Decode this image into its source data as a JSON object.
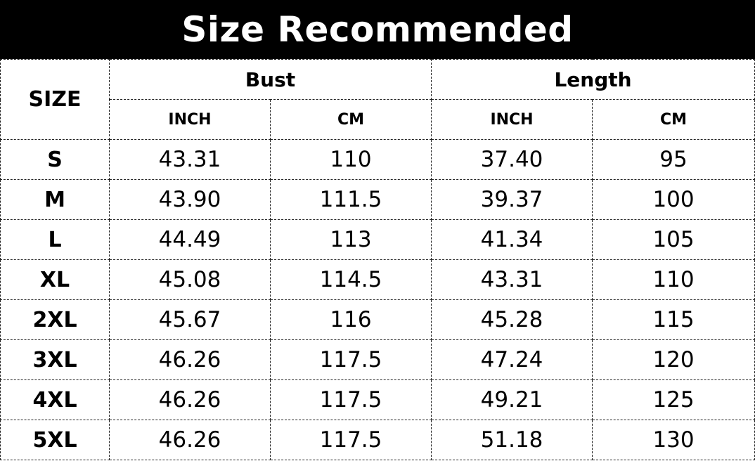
{
  "title": "Size Recommended",
  "headers": {
    "size": "SIZE",
    "bust": "Bust",
    "length": "Length",
    "units": [
      "INCH",
      "CM",
      "INCH",
      "CM"
    ]
  },
  "rows": [
    {
      "size": "S",
      "bust_inch": "43.31",
      "bust_cm": "110",
      "length_inch": "37.40",
      "length_cm": "95"
    },
    {
      "size": "M",
      "bust_inch": "43.90",
      "bust_cm": "111.5",
      "length_inch": "39.37",
      "length_cm": "100"
    },
    {
      "size": "L",
      "bust_inch": "44.49",
      "bust_cm": "113",
      "length_inch": "41.34",
      "length_cm": "105"
    },
    {
      "size": "XL",
      "bust_inch": "45.08",
      "bust_cm": "114.5",
      "length_inch": "43.31",
      "length_cm": "110"
    },
    {
      "size": "2XL",
      "bust_inch": "45.67",
      "bust_cm": "116",
      "length_inch": "45.28",
      "length_cm": "115"
    },
    {
      "size": "3XL",
      "bust_inch": "46.26",
      "bust_cm": "117.5",
      "length_inch": "47.24",
      "length_cm": "120"
    },
    {
      "size": "4XL",
      "bust_inch": "46.26",
      "bust_cm": "117.5",
      "length_inch": "49.21",
      "length_cm": "125"
    },
    {
      "size": "5XL",
      "bust_inch": "46.26",
      "bust_cm": "117.5",
      "length_inch": "51.18",
      "length_cm": "130"
    }
  ]
}
